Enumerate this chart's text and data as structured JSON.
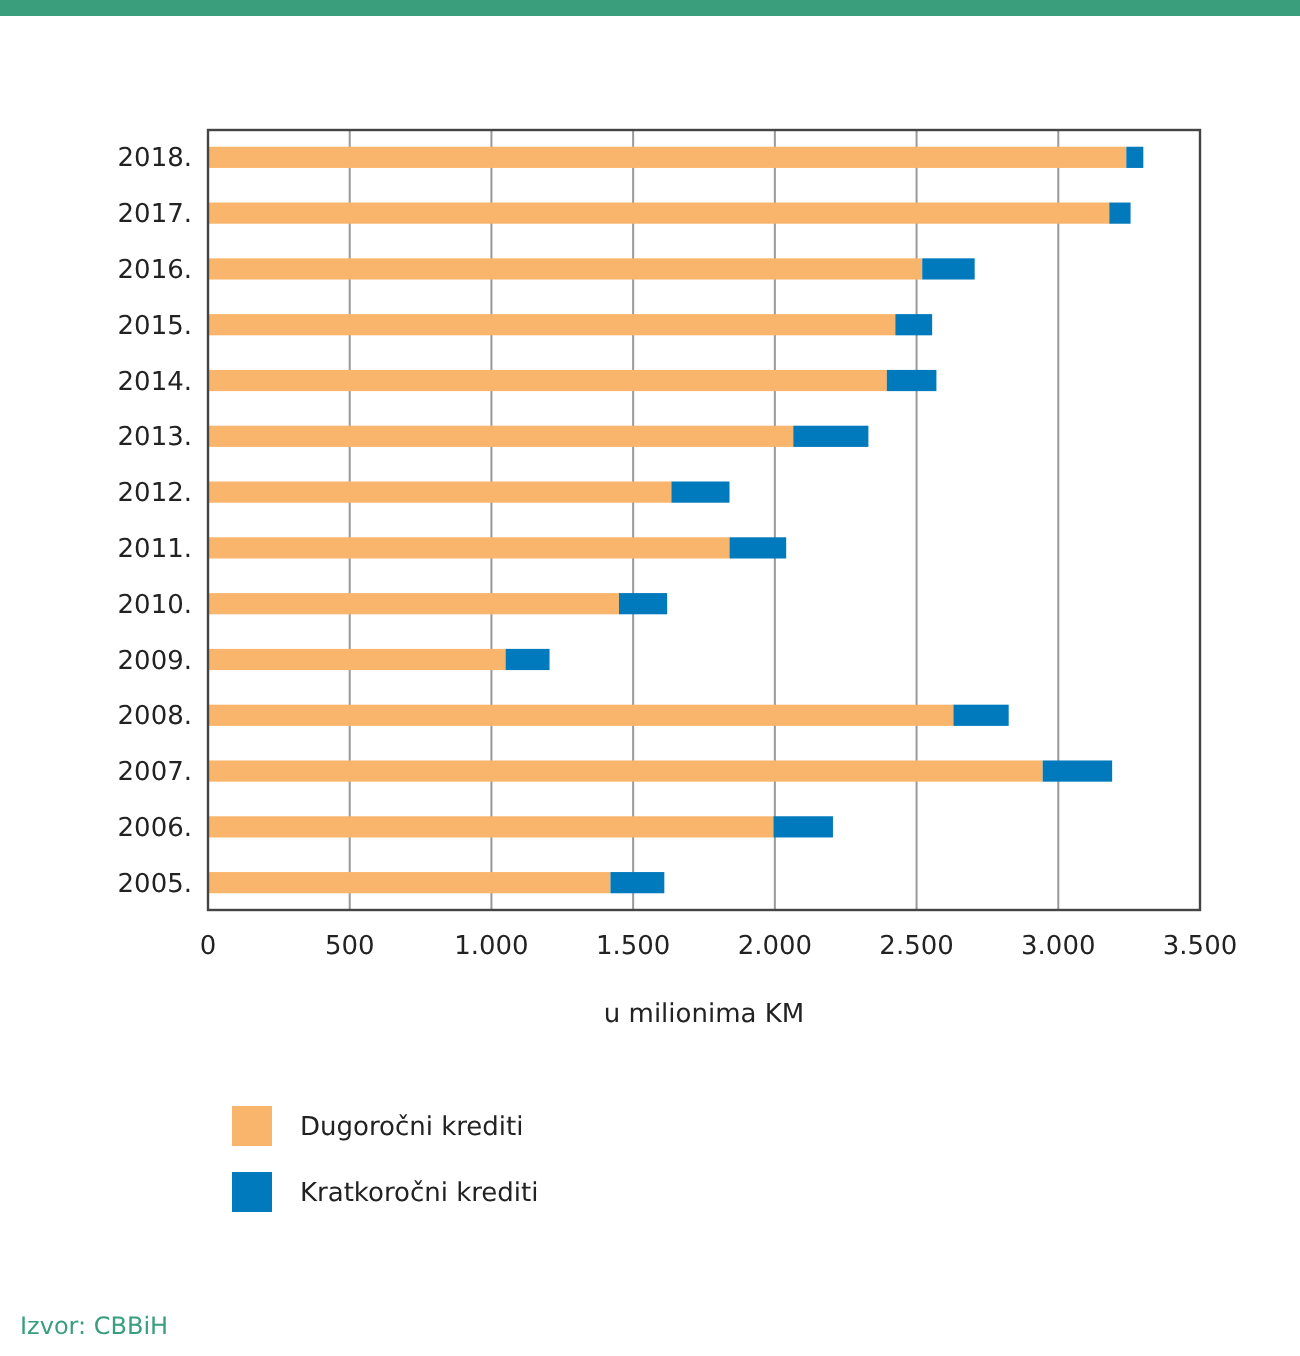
{
  "chart_data": {
    "type": "bar",
    "orientation": "horizontal",
    "stacked": true,
    "categories": [
      "2018.",
      "2017.",
      "2016.",
      "2015.",
      "2014.",
      "2013.",
      "2012.",
      "2011.",
      "2010.",
      "2009.",
      "2008.",
      "2007.",
      "2006.",
      "2005."
    ],
    "series": [
      {
        "name": "Dugoročni krediti",
        "color": "#f9b56b",
        "values": [
          3240,
          3180,
          2520,
          2425,
          2395,
          2065,
          1635,
          1840,
          1450,
          1050,
          2630,
          2945,
          1995,
          1420
        ]
      },
      {
        "name": "Kratkoročni krediti",
        "color": "#0079bd",
        "values": [
          60,
          75,
          185,
          130,
          175,
          265,
          205,
          200,
          170,
          155,
          195,
          245,
          210,
          190
        ]
      }
    ],
    "xlabel": "u milionima KM",
    "xlim": [
      0,
      3500
    ],
    "xticks": [
      {
        "value": 0,
        "label": "0"
      },
      {
        "value": 500,
        "label": "500"
      },
      {
        "value": 1000,
        "label": "1.000"
      },
      {
        "value": 1500,
        "label": "1.500"
      },
      {
        "value": 2000,
        "label": "2.000"
      },
      {
        "value": 2500,
        "label": "2.500"
      },
      {
        "value": 3000,
        "label": "3.000"
      },
      {
        "value": 3500,
        "label": "3.500"
      }
    ],
    "grid": "x",
    "legend": "bottom",
    "annotations": [
      "Izvor: CBBiH"
    ]
  }
}
